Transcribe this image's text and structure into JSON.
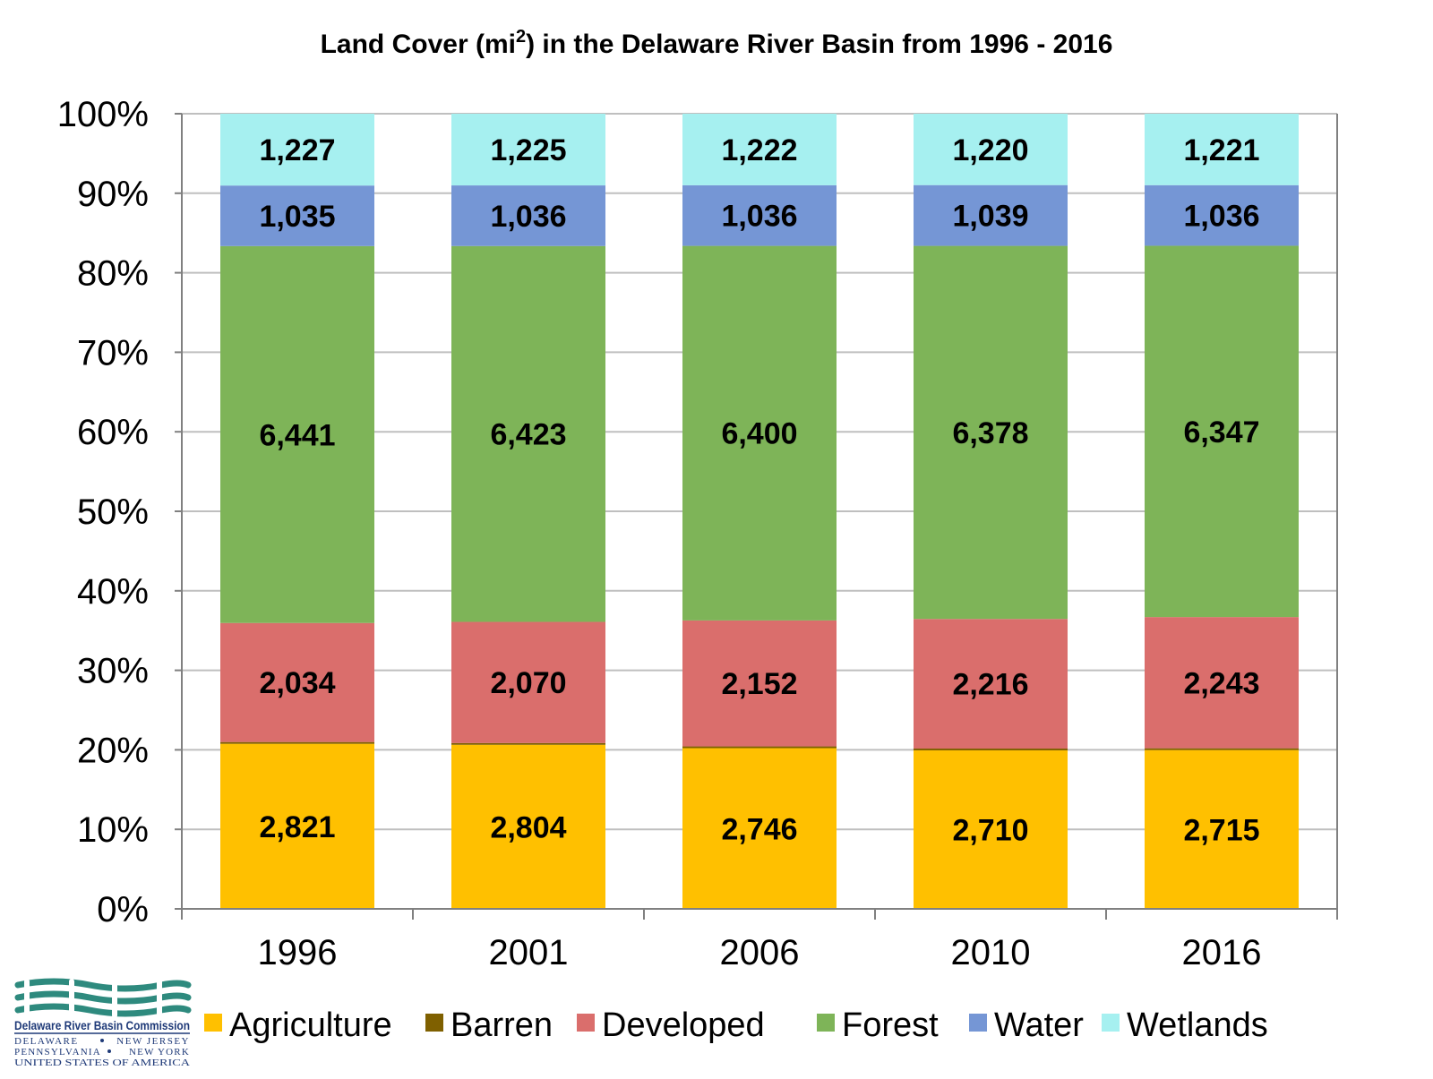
{
  "chart_data": {
    "type": "bar",
    "stacking": "percent",
    "title": "Land Cover (mi",
    "title_superscript": "2",
    "title_suffix": ") in the Delaware River Basin from 1996 - 2016",
    "categories": [
      "1996",
      "2001",
      "2006",
      "2010",
      "2016"
    ],
    "ylim": [
      0,
      100
    ],
    "yticks": [
      "0%",
      "10%",
      "20%",
      "30%",
      "40%",
      "50%",
      "60%",
      "70%",
      "80%",
      "90%",
      "100%"
    ],
    "grid": true,
    "legend_position": "bottom",
    "series": [
      {
        "name": "Agriculture",
        "color": "#FFC000",
        "values": [
          2821,
          2804,
          2746,
          2710,
          2715
        ],
        "labels": [
          "2,821",
          "2,804",
          "2,746",
          "2,710",
          "2,715"
        ]
      },
      {
        "name": "Barren",
        "color": "#7F6000",
        "values": [
          30,
          30,
          30,
          30,
          30
        ],
        "labels": []
      },
      {
        "name": "Developed",
        "color": "#DA6E6C",
        "values": [
          2034,
          2070,
          2152,
          2216,
          2243
        ],
        "labels": [
          "2,034",
          "2,070",
          "2,152",
          "2,216",
          "2,243"
        ]
      },
      {
        "name": "Forest",
        "color": "#7EB458",
        "values": [
          6441,
          6423,
          6400,
          6378,
          6347
        ],
        "labels": [
          "6,441",
          "6,423",
          "6,400",
          "6,378",
          "6,347"
        ]
      },
      {
        "name": "Water",
        "color": "#7596D5",
        "values": [
          1035,
          1036,
          1036,
          1039,
          1036
        ],
        "labels": [
          "1,035",
          "1,036",
          "1,036",
          "1,039",
          "1,036"
        ]
      },
      {
        "name": "Wetlands",
        "color": "#A6F0F0",
        "values": [
          1227,
          1225,
          1222,
          1220,
          1221
        ],
        "labels": [
          "1,227",
          "1,225",
          "1,222",
          "1,220",
          "1,221"
        ]
      }
    ]
  },
  "logo": {
    "name": "Delaware River Basin Commission",
    "line1_left": "DELAWARE",
    "line1_right": "NEW JERSEY",
    "line2_left": "PENNSYLVANIA",
    "line2_right": "NEW YORK",
    "line3": "UNITED STATES OF AMERICA",
    "mark_color": "#2E8A7E",
    "text_color": "#1F3A78"
  }
}
